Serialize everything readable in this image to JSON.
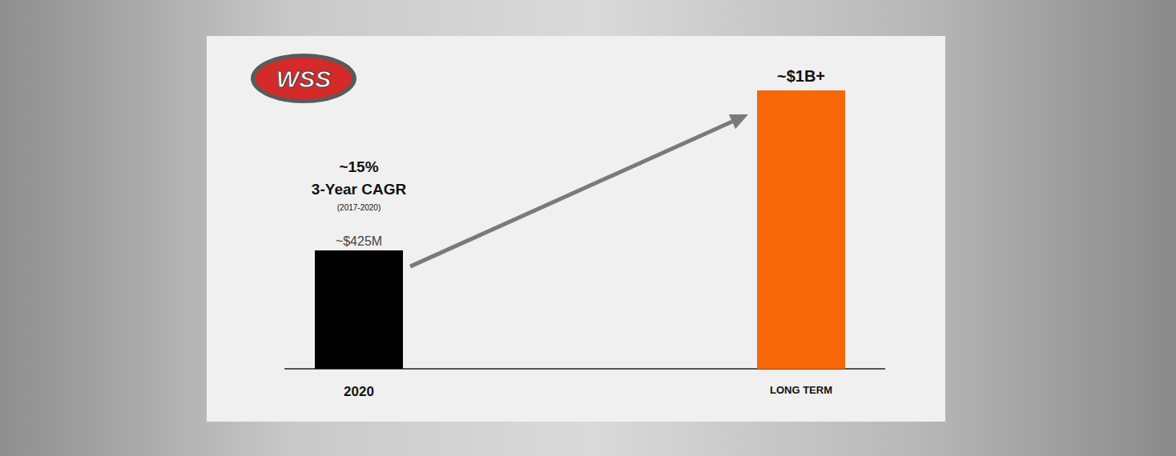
{
  "chart_data": {
    "type": "bar",
    "logo": "WSS",
    "categories": [
      "2020",
      "LONG TERM"
    ],
    "values": [
      425,
      1000
    ],
    "value_labels": [
      "~$425M",
      "~$1B+"
    ],
    "colors": [
      "#000000",
      "#f76707"
    ],
    "annotations": [
      "~15%",
      "3-Year CAGR",
      "(2017-2020)"
    ],
    "ylim": [
      0,
      1000
    ],
    "yticks": [
      0,
      1000
    ],
    "grid": false,
    "tick_labels": "x",
    "data_labels": true
  }
}
